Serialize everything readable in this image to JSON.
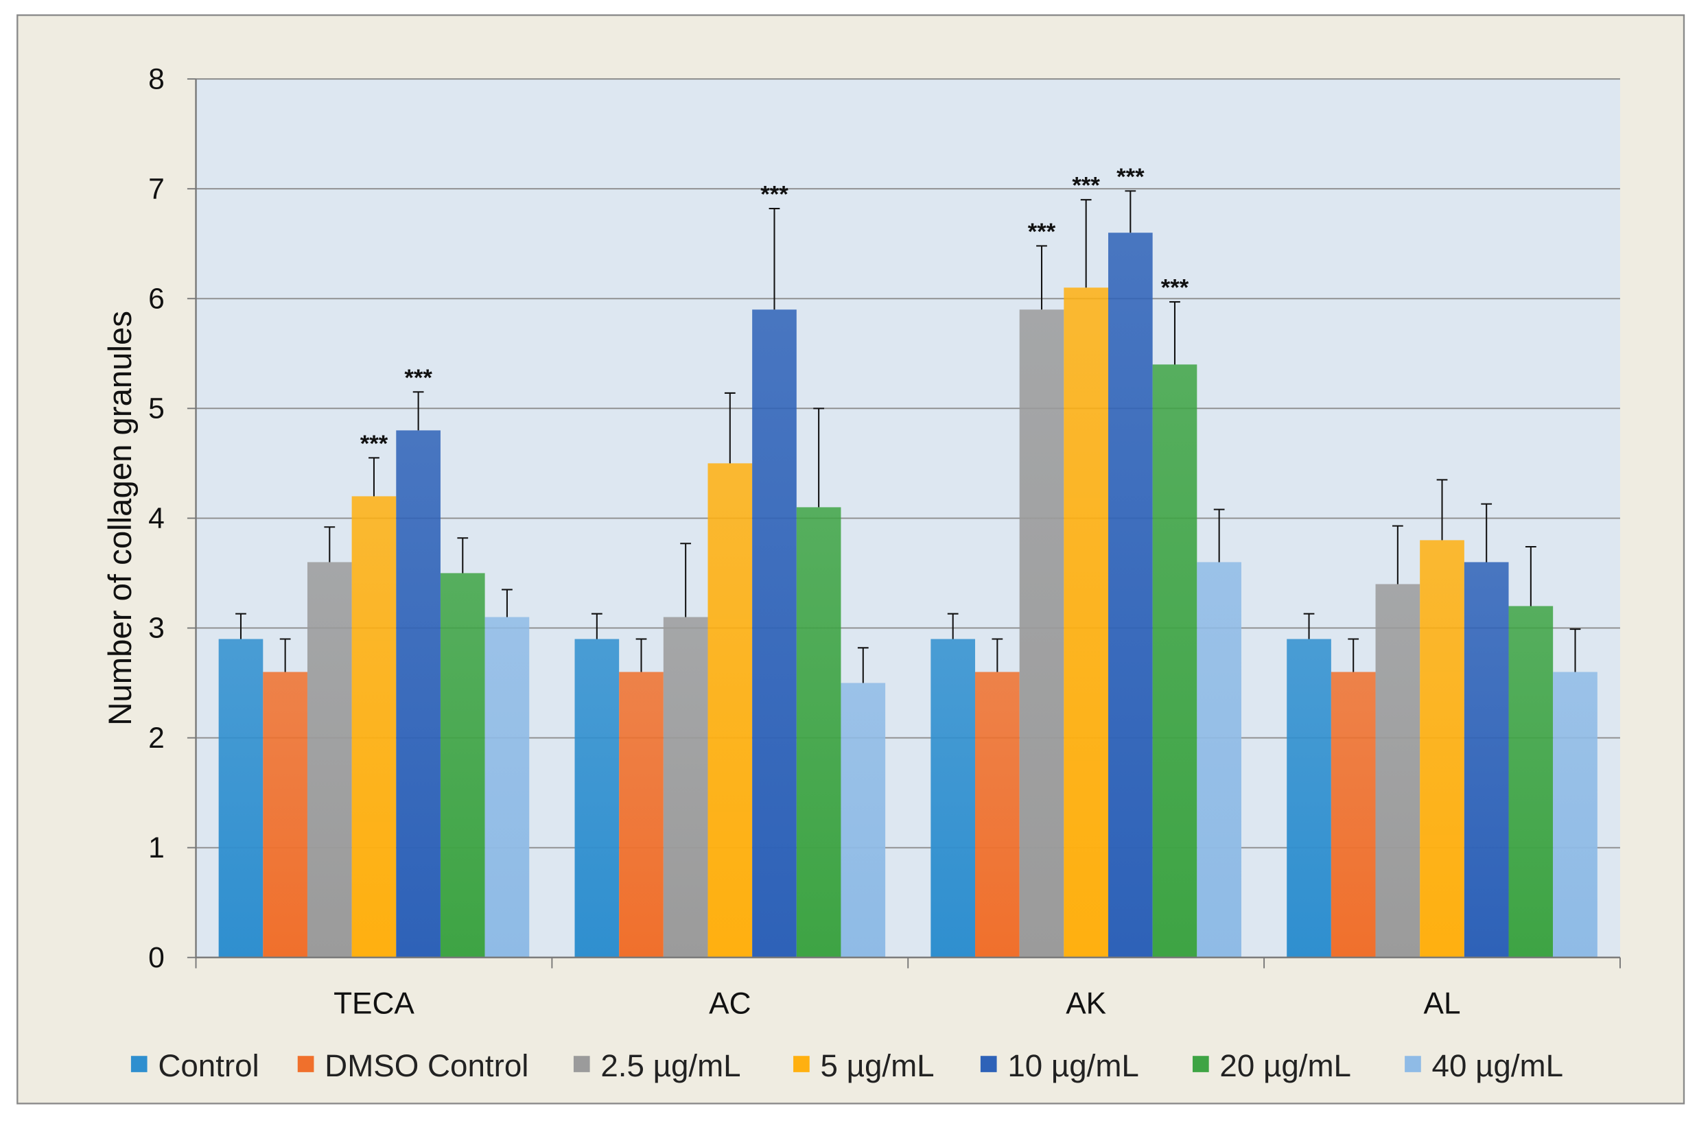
{
  "chart_data": {
    "type": "bar",
    "title": "",
    "xlabel": "",
    "ylabel": "Number of collagen granules",
    "ylim": [
      0,
      8
    ],
    "yticks": [
      "0",
      "1",
      "2",
      "3",
      "4",
      "5",
      "6",
      "7",
      "8"
    ],
    "grid": true,
    "legend_position": "bottom",
    "categories": [
      "TECA",
      "AC",
      "AK",
      "AL"
    ],
    "series": [
      {
        "name": "Control",
        "color": "#2f8fcf",
        "values": [
          2.9,
          2.9,
          2.9,
          2.9
        ],
        "errors": [
          0.23,
          0.23,
          0.23,
          0.23
        ],
        "stars": [
          "",
          "",
          "",
          ""
        ]
      },
      {
        "name": "DMSO Control",
        "color": "#f0702c",
        "values": [
          2.6,
          2.6,
          2.6,
          2.6
        ],
        "errors": [
          0.3,
          0.3,
          0.3,
          0.3
        ],
        "stars": [
          "",
          "",
          "",
          ""
        ]
      },
      {
        "name": "2.5 µg/mL",
        "color": "#9b9b9b",
        "values": [
          3.6,
          3.1,
          5.9,
          3.4
        ],
        "errors": [
          0.32,
          0.67,
          0.58,
          0.53
        ],
        "stars": [
          "",
          "",
          "***",
          ""
        ]
      },
      {
        "name": "5 µg/mL",
        "color": "#ffb010",
        "values": [
          4.2,
          4.5,
          6.1,
          3.8
        ],
        "errors": [
          0.35,
          0.64,
          0.8,
          0.55
        ],
        "stars": [
          "***",
          "",
          "***",
          ""
        ]
      },
      {
        "name": "10 µg/mL",
        "color": "#2e62b8",
        "values": [
          4.8,
          5.9,
          6.6,
          3.6
        ],
        "errors": [
          0.35,
          0.92,
          0.38,
          0.53
        ],
        "stars": [
          "***",
          "***",
          "***",
          ""
        ]
      },
      {
        "name": "20 µg/mL",
        "color": "#3ea444",
        "values": [
          3.5,
          4.1,
          5.4,
          3.2
        ],
        "errors": [
          0.32,
          0.9,
          0.57,
          0.54
        ],
        "stars": [
          "",
          "",
          "***",
          ""
        ]
      },
      {
        "name": "40 µg/mL",
        "color": "#8fbbe6",
        "values": [
          3.1,
          2.5,
          3.6,
          2.6
        ],
        "errors": [
          0.25,
          0.32,
          0.48,
          0.39
        ],
        "stars": [
          "",
          "",
          "",
          ""
        ]
      }
    ]
  }
}
